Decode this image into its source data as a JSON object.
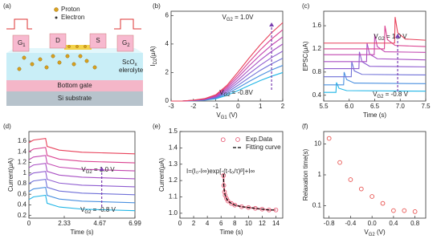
{
  "schematic": {
    "panel_label": "(a)",
    "proton": "Proton",
    "electron": "Electron",
    "g1": [
      "G",
      "1"
    ],
    "g2": [
      "G",
      "2"
    ],
    "drain": "D",
    "source": "S",
    "electrolyte": [
      "ScO",
      "x"
    ],
    "electrolyte_word": "elerolyte",
    "bottom_gate": "Bottom gate",
    "substrate": "Si substrate"
  },
  "chart_data": [
    {
      "type": "line",
      "panel_label": "(b)",
      "xlabel": [
        "V",
        "G1",
        " (V)"
      ],
      "ylabel": [
        "I",
        "D2",
        "(μA)"
      ],
      "xlim": [
        -3,
        2
      ],
      "xticks": [
        -3,
        -2,
        -1,
        0,
        1,
        2
      ],
      "ylim": [
        0,
        6.3
      ],
      "yticks": [
        0,
        2,
        4,
        6
      ],
      "annotations": [
        [
          "V",
          "G2",
          " = 1.0V"
        ],
        [
          "V",
          "G2",
          " = -0.8V"
        ]
      ],
      "x": [
        -3,
        -2.5,
        -2,
        -1.5,
        -1,
        -0.5,
        0,
        0.5,
        1,
        1.5,
        2
      ],
      "series": [
        {
          "color": "#1fb5e6",
          "values": [
            0,
            0,
            0.02,
            0.06,
            0.16,
            0.4,
            0.74,
            1.1,
            1.44,
            1.74,
            2.0
          ]
        },
        {
          "color": "#4a90e0",
          "values": [
            0,
            0,
            0.03,
            0.08,
            0.2,
            0.5,
            0.93,
            1.38,
            1.8,
            2.18,
            2.5
          ]
        },
        {
          "color": "#6f70d8",
          "values": [
            0,
            0,
            0.03,
            0.09,
            0.24,
            0.6,
            1.11,
            1.65,
            2.16,
            2.61,
            3.0
          ]
        },
        {
          "color": "#8e5cd0",
          "values": [
            0,
            0,
            0.04,
            0.11,
            0.28,
            0.7,
            1.3,
            1.93,
            2.52,
            3.05,
            3.5
          ]
        },
        {
          "color": "#a84fc4",
          "values": [
            0,
            0,
            0.04,
            0.12,
            0.32,
            0.8,
            1.48,
            2.2,
            2.88,
            3.48,
            4.0
          ]
        },
        {
          "color": "#c246b0",
          "values": [
            0,
            0,
            0.05,
            0.14,
            0.36,
            0.9,
            1.67,
            2.48,
            3.24,
            3.92,
            4.5
          ]
        },
        {
          "color": "#da4290",
          "values": [
            0,
            0,
            0.05,
            0.15,
            0.4,
            1.0,
            1.85,
            2.75,
            3.6,
            4.35,
            5.0
          ]
        },
        {
          "color": "#e8415a",
          "values": [
            0,
            0,
            0.06,
            0.17,
            0.44,
            1.1,
            2.04,
            3.03,
            3.96,
            4.79,
            5.5
          ]
        }
      ]
    },
    {
      "type": "line",
      "panel_label": "(c)",
      "xlabel": "Time (s)",
      "ylabel": "EPSC(μA)",
      "xlim": [
        5.5,
        7.5
      ],
      "xticks": [
        5.5,
        {
          "value": 6,
          "label": "6.0"
        },
        6.5,
        {
          "value": 7,
          "label": "7.0"
        },
        7.5
      ],
      "ylim": [
        0.3,
        1.85
      ],
      "yticks": [
        0.4,
        0.8,
        1.2,
        1.6
      ],
      "annotations": [
        [
          "V",
          "G2",
          " = 1.0 V"
        ],
        [
          "V",
          "G2",
          " = -0.8 V"
        ]
      ],
      "series": [
        {
          "color": "#1fb5e6",
          "x": [
            5.5,
            5.74,
            5.75,
            5.8,
            5.95,
            7.5
          ],
          "values": [
            0.45,
            0.45,
            0.62,
            0.52,
            0.48,
            0.47
          ]
        },
        {
          "color": "#4a90e0",
          "x": [
            5.5,
            5.89,
            5.9,
            5.95,
            6.1,
            7.5
          ],
          "values": [
            0.58,
            0.58,
            0.8,
            0.67,
            0.61,
            0.6
          ]
        },
        {
          "color": "#6f70d8",
          "x": [
            5.5,
            6.04,
            6.05,
            6.1,
            6.25,
            7.5
          ],
          "values": [
            0.72,
            0.72,
            0.98,
            0.82,
            0.76,
            0.75
          ]
        },
        {
          "color": "#8e5cd0",
          "x": [
            5.5,
            6.19,
            6.2,
            6.25,
            6.4,
            7.5
          ],
          "values": [
            0.86,
            0.86,
            1.15,
            0.98,
            0.9,
            0.89
          ]
        },
        {
          "color": "#a84fc4",
          "x": [
            5.5,
            6.34,
            6.35,
            6.4,
            6.55,
            7.5
          ],
          "values": [
            0.98,
            0.98,
            1.3,
            1.11,
            1.03,
            1.01
          ]
        },
        {
          "color": "#c246b0",
          "x": [
            5.5,
            6.49,
            6.5,
            6.55,
            6.7,
            7.5
          ],
          "values": [
            1.1,
            1.1,
            1.45,
            1.24,
            1.15,
            1.14
          ]
        },
        {
          "color": "#da4290",
          "x": [
            5.5,
            6.69,
            6.7,
            6.75,
            6.9,
            7.5
          ],
          "values": [
            1.2,
            1.2,
            1.6,
            1.36,
            1.26,
            1.24
          ]
        },
        {
          "color": "#e8415a",
          "x": [
            5.5,
            6.89,
            6.9,
            6.95,
            7.1,
            7.5
          ],
          "values": [
            1.3,
            1.3,
            1.75,
            1.48,
            1.37,
            1.35
          ]
        }
      ]
    },
    {
      "type": "line",
      "panel_label": "(d)",
      "xlabel": "Time (s)",
      "ylabel": "Current(μA)",
      "xlim": [
        0,
        6.99
      ],
      "xticks": [
        0,
        2.33,
        4.67,
        6.99
      ],
      "ylim": [
        0.15,
        1.78
      ],
      "yticks": [
        0.2,
        0.4,
        0.6,
        0.8,
        1.0,
        1.2,
        1.4,
        1.6
      ],
      "annotations": [
        [
          "V",
          "G2",
          " = 1.0 V"
        ],
        [
          "V",
          "G2",
          " = -0.8 V"
        ]
      ],
      "x": [
        0,
        0.3,
        1.1,
        1.2,
        2,
        3.5,
        6.99
      ],
      "series": [
        {
          "color": "#1fb5e6",
          "values": [
            0.5,
            0.55,
            0.58,
            0.43,
            0.36,
            0.32,
            0.29
          ]
        },
        {
          "color": "#4a90e0",
          "values": [
            0.65,
            0.7,
            0.73,
            0.58,
            0.51,
            0.47,
            0.44
          ]
        },
        {
          "color": "#6f70d8",
          "values": [
            0.8,
            0.85,
            0.88,
            0.73,
            0.66,
            0.62,
            0.59
          ]
        },
        {
          "color": "#8e5cd0",
          "values": [
            0.95,
            1.0,
            1.03,
            0.88,
            0.81,
            0.77,
            0.74
          ]
        },
        {
          "color": "#a84fc4",
          "values": [
            1.1,
            1.15,
            1.18,
            1.03,
            0.96,
            0.92,
            0.89
          ]
        },
        {
          "color": "#c246b0",
          "values": [
            1.25,
            1.3,
            1.33,
            1.18,
            1.11,
            1.07,
            1.04
          ]
        },
        {
          "color": "#da4290",
          "values": [
            1.4,
            1.45,
            1.48,
            1.33,
            1.26,
            1.22,
            1.19
          ]
        },
        {
          "color": "#e8415a",
          "values": [
            1.57,
            1.62,
            1.65,
            1.5,
            1.43,
            1.39,
            1.36
          ]
        }
      ]
    },
    {
      "type": "scatter",
      "panel_label": "(e)",
      "xlabel": "Time (s)",
      "ylabel": "Current(μA)",
      "xlim": [
        0,
        15
      ],
      "xticks": [
        0,
        2,
        4,
        6,
        8,
        10,
        12,
        14
      ],
      "ylim": [
        0.97,
        1.5
      ],
      "yticks": [
        {
          "value": 1,
          "label": "1.0"
        },
        1.1,
        1.2,
        1.3,
        1.4,
        1.5
      ],
      "legend": "upper right",
      "annotations": [
        "I=(I₀-I∞)exp[-(t-t₀/τ)ᵝ]+I∞"
      ],
      "series": [
        {
          "name": "Exp.Data",
          "kind": "markers",
          "color": "#e8607a",
          "x": [
            6.3,
            6.35,
            6.4,
            6.5,
            6.6,
            6.8,
            7,
            7.5,
            8,
            9,
            10,
            11,
            12,
            13,
            14
          ],
          "values": [
            1.45,
            1.23,
            1.17,
            1.13,
            1.11,
            1.09,
            1.075,
            1.06,
            1.05,
            1.04,
            1.035,
            1.03,
            1.025,
            1.02,
            1.02
          ]
        },
        {
          "name": "Fitting curve",
          "kind": "dashed",
          "color": "#000000",
          "x": [
            6.35,
            6.4,
            6.5,
            6.6,
            6.8,
            7,
            7.5,
            8,
            9,
            10,
            11,
            12,
            13,
            14
          ],
          "values": [
            1.24,
            1.17,
            1.13,
            1.11,
            1.09,
            1.075,
            1.06,
            1.05,
            1.04,
            1.035,
            1.03,
            1.025,
            1.02,
            1.02
          ]
        }
      ]
    },
    {
      "type": "scatter",
      "panel_label": "(f)",
      "xlabel": [
        "V",
        "G2",
        " (V)"
      ],
      "ylabel": "Relaxation time(s)",
      "xlim": [
        -0.9,
        1.0
      ],
      "xticks": [
        -0.8,
        -0.4,
        {
          "value": 0,
          "label": "0.0"
        },
        0.4,
        0.8
      ],
      "ylim": [
        0.04,
        25
      ],
      "log_y": true,
      "yticks": [
        0.1,
        1,
        10
      ],
      "series": [
        {
          "kind": "markers",
          "color": "#e8524f",
          "x": [
            -0.8,
            -0.6,
            -0.4,
            -0.2,
            0,
            0.2,
            0.4,
            0.6,
            0.8
          ],
          "values": [
            15,
            2.5,
            0.7,
            0.35,
            0.2,
            0.12,
            0.07,
            0.07,
            0.065
          ]
        }
      ]
    }
  ]
}
